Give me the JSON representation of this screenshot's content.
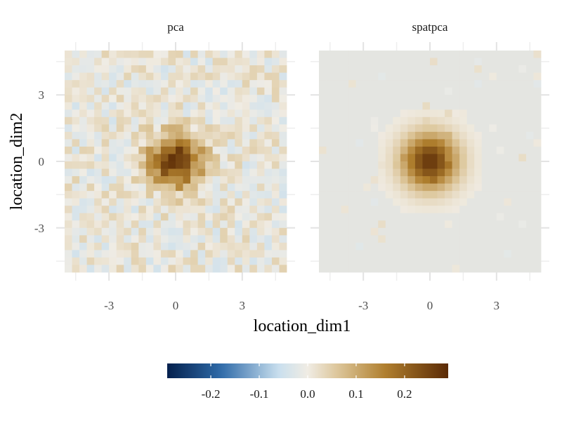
{
  "chart_data": {
    "type": "heatmap",
    "facets": [
      "pca",
      "spatpca"
    ],
    "xlabel": "location_dim1",
    "ylabel": "location_dim2",
    "x_ticks": [
      -3,
      0,
      3
    ],
    "y_ticks": [
      3,
      0,
      -3
    ],
    "x_tick_labels": [
      "-3",
      "0",
      "3"
    ],
    "y_tick_labels": [
      "3",
      "0",
      "-3"
    ],
    "xlim": [
      -5.0,
      5.0
    ],
    "ylim": [
      -5.0,
      5.0
    ],
    "grid_size": 30,
    "peak": {
      "x": 0.0,
      "y": 0.0,
      "value": 0.27
    },
    "facet_params": {
      "pca": {
        "peak_value": 0.27,
        "noise_level": "moderate"
      },
      "spatpca": {
        "peak_value": 0.27,
        "noise_level": "near zero"
      }
    },
    "legend": {
      "position": "bottom",
      "range": [
        -0.29,
        0.29
      ],
      "breaks": [
        -0.2,
        -0.1,
        0.0,
        0.1,
        0.2
      ],
      "break_labels": [
        "-0.2",
        "-0.1",
        "0.0",
        "0.1",
        "0.2"
      ]
    },
    "colors": {
      "negative_end": "#04204d",
      "neg_mid": "#2e6aa8",
      "light_neg": "#c9dfee",
      "zero": "#f0ece4",
      "light_pos": "#ddc79c",
      "pos_mid": "#b07f2e",
      "positive_end": "#5a2a05",
      "spatpca_background": "#e4e5e1"
    },
    "grid_on": true
  }
}
